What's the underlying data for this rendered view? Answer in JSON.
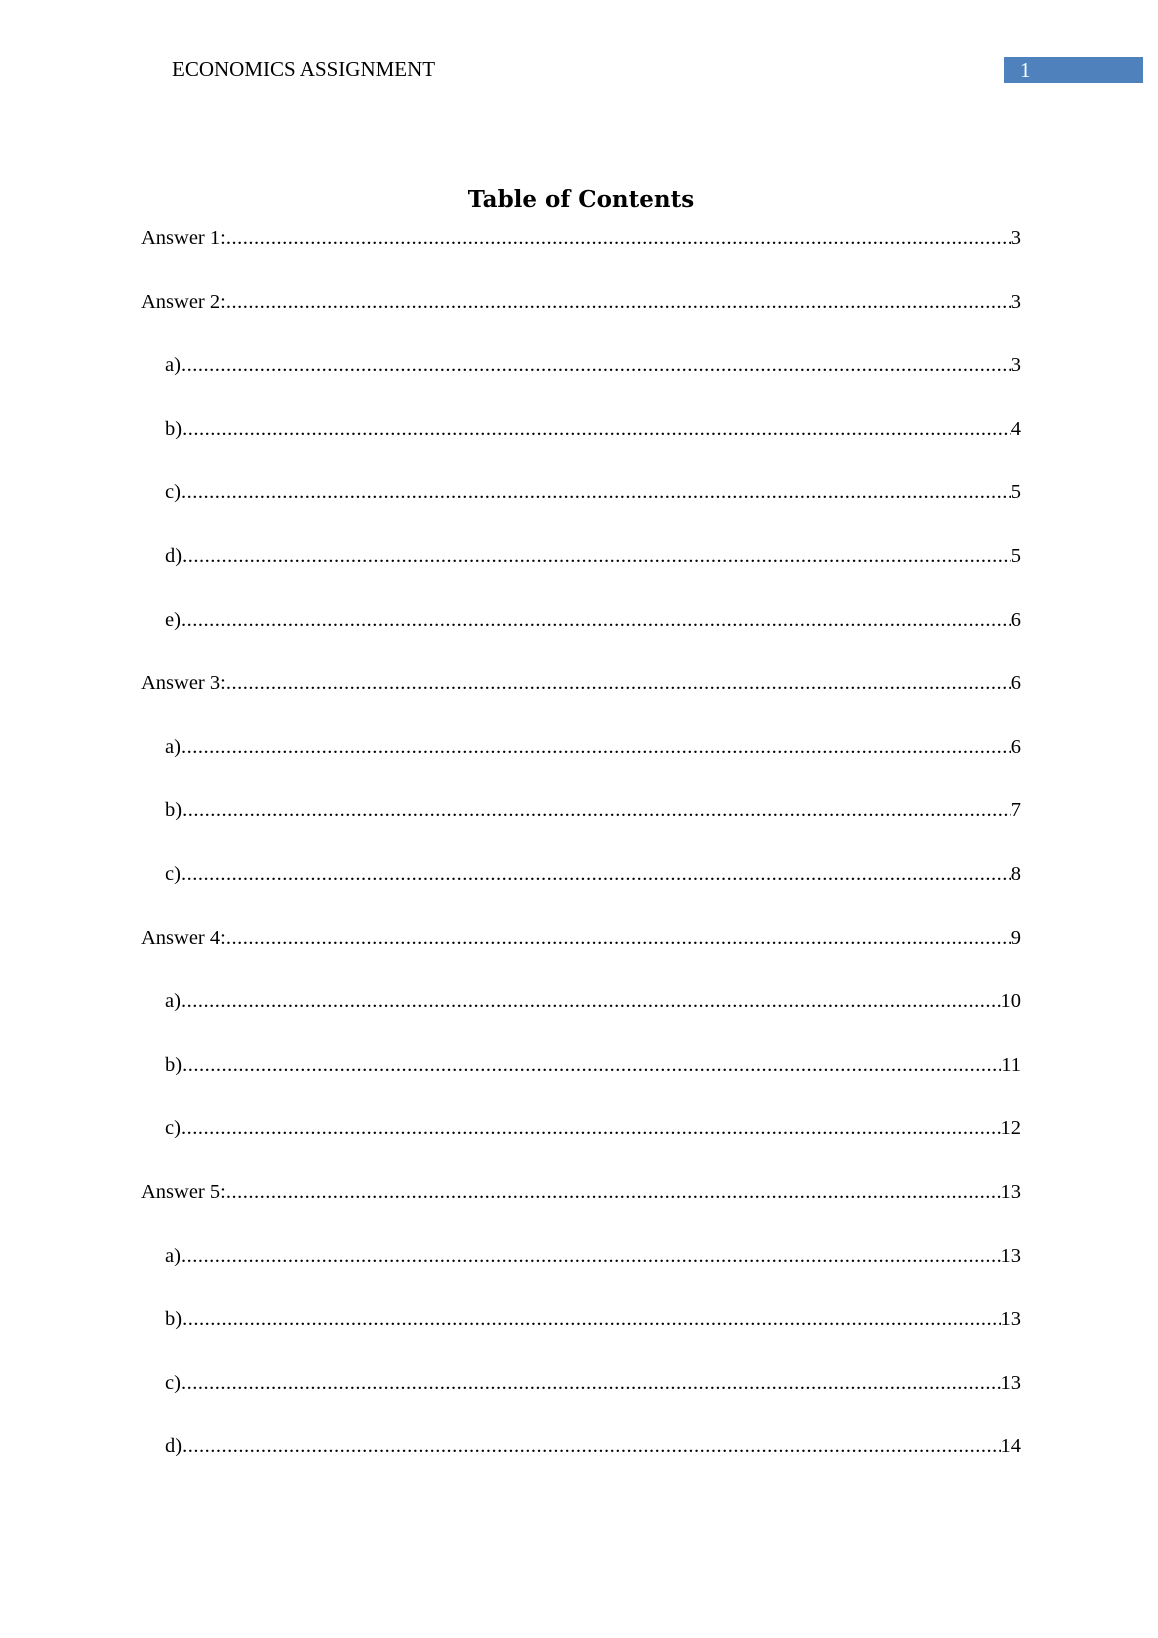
{
  "header": {
    "title": "ECONOMICS ASSIGNMENT",
    "page_number": "1",
    "accent_color": "#4f81bd"
  },
  "toc": {
    "title": "Table of Contents",
    "entries": [
      {
        "label": "Answer 1:",
        "page": "3",
        "level": 1
      },
      {
        "label": "Answer 2:",
        "page": "3",
        "level": 1
      },
      {
        "label": "a)",
        "page": "3",
        "level": 2
      },
      {
        "label": "b)",
        "page": "4",
        "level": 2
      },
      {
        "label": "c)",
        "page": "5",
        "level": 2
      },
      {
        "label": "d)",
        "page": "5",
        "level": 2
      },
      {
        "label": "e)",
        "page": "6",
        "level": 2
      },
      {
        "label": "Answer 3:",
        "page": "6",
        "level": 1
      },
      {
        "label": "a)",
        "page": "6",
        "level": 2
      },
      {
        "label": "b)",
        "page": "7",
        "level": 2
      },
      {
        "label": "c)",
        "page": "8",
        "level": 2
      },
      {
        "label": "Answer 4:",
        "page": "9",
        "level": 1
      },
      {
        "label": "a)",
        "page": "10",
        "level": 2
      },
      {
        "label": "b)",
        "page": "11",
        "level": 2
      },
      {
        "label": "c)",
        "page": "12",
        "level": 2
      },
      {
        "label": "Answer 5:",
        "page": "13",
        "level": 1
      },
      {
        "label": "a)",
        "page": "13",
        "level": 2
      },
      {
        "label": "b)",
        "page": "13",
        "level": 2
      },
      {
        "label": "c)",
        "page": "13",
        "level": 2
      },
      {
        "label": "d)",
        "page": "14",
        "level": 2
      }
    ]
  }
}
